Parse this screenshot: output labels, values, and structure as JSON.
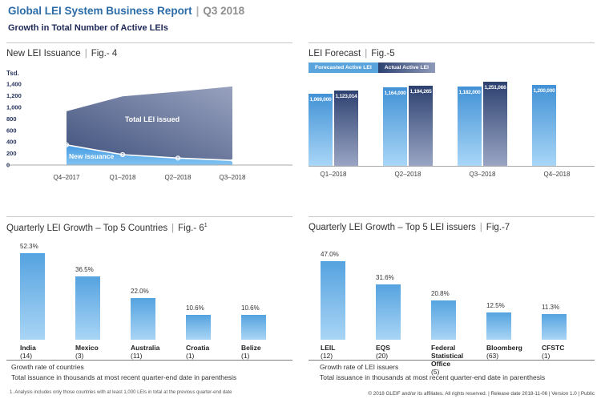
{
  "header": {
    "title": "Global LEI System Business Report",
    "pipe": "|",
    "period": "Q3 2018",
    "subtitle": "Growth in Total Number of Active LEIs"
  },
  "sections": {
    "fig4": {
      "title": "New LEI Issuance",
      "fig": "Fig.- 4"
    },
    "fig5": {
      "title": "LEI Forecast",
      "fig": "Fig.-5"
    },
    "fig6": {
      "title": "Quarterly LEI Growth – Top 5 Countries",
      "fig": "Fig.- 6",
      "sup": "1"
    },
    "fig7": {
      "title": "Quarterly LEI Growth – Top 5 LEI issuers",
      "fig": "Fig.-7"
    }
  },
  "chart_data": [
    {
      "id": "fig4",
      "type": "area",
      "title": "New LEI Issuance | Fig.- 4",
      "ylabel": "Tsd.",
      "ylim": [
        0,
        1400
      ],
      "ytick_values": [
        1400,
        1200,
        1000,
        800,
        600,
        400,
        200,
        0
      ],
      "yticks": [
        "1,400",
        "1,200",
        "1,000",
        "800",
        "600",
        "400",
        "200",
        "0"
      ],
      "categories": [
        "Q4–2017",
        "Q1–2018",
        "Q2–2018",
        "Q3–2018"
      ],
      "series": [
        {
          "name": "Total LEI issued",
          "values": [
            930,
            1190,
            1270,
            1360
          ]
        },
        {
          "name": "New issuance",
          "values": [
            350,
            180,
            120,
            80
          ]
        }
      ],
      "grid": false,
      "legend_position": "inside"
    },
    {
      "id": "fig5",
      "type": "bar",
      "title": "LEI Forecast | Fig.-5",
      "categories": [
        "Q1–2018",
        "Q2–2018",
        "Q3–2018",
        "Q4–2018"
      ],
      "series": [
        {
          "name": "Forecasted Active LEI",
          "values": [
            1069000,
            1164000,
            1182000,
            1200000
          ],
          "labels": [
            "1,069,000",
            "1,164,000",
            "1,182,000",
            "1,200,000"
          ]
        },
        {
          "name": "Actual Active LEI",
          "values": [
            1123014,
            1194265,
            1251066,
            null
          ],
          "labels": [
            "1,123,014",
            "1,194,265",
            "1,251,066",
            null
          ]
        }
      ],
      "grid": false,
      "legend_position": "top-left"
    },
    {
      "id": "fig6",
      "type": "bar",
      "title": "Quarterly LEI Growth – Top 5 Countries | Fig.-6",
      "categories": [
        "India",
        "Mexico",
        "Australia",
        "Croatia",
        "Belize"
      ],
      "counts": [
        "(14)",
        "(3)",
        "(11)",
        "(1)",
        "(1)"
      ],
      "values": [
        52.3,
        36.5,
        22.0,
        10.6,
        10.6
      ],
      "value_labels": [
        "52.3%",
        "36.5%",
        "22.0%",
        "10.6%",
        "10.6%"
      ],
      "ylabel": "",
      "notes": [
        "Growth rate of countries",
        "Total issuance in thousands at most recent quarter-end date in parenthesis"
      ]
    },
    {
      "id": "fig7",
      "type": "bar",
      "title": "Quarterly LEI Growth – Top 5 LEI issuers | Fig.-7",
      "categories": [
        "LEIL",
        "EQS",
        "Federal Statistical Office",
        "Bloomberg",
        "CFSTC"
      ],
      "counts": [
        "(12)",
        "(20)",
        "(5)",
        "(63)",
        "(1)"
      ],
      "values": [
        47.0,
        31.6,
        20.8,
        12.5,
        11.3
      ],
      "value_labels": [
        "47.0%",
        "31.6%",
        "20.8%",
        "12.5%",
        "11.3%"
      ],
      "ylabel": "",
      "notes": [
        "Growth rate of LEI issuers",
        "Total issuance in thousands at most recent quarter-end date in parenthesis"
      ]
    }
  ],
  "footer": {
    "footnote": "1. Analysis includes only those countries with at least 1,000 LEIs in total at the previous quarter-end date",
    "copyright": "© 2018 GLEIF and/or its affiliates. All rights reserved. | Release date 2018-11-06 | Version 1.0 | Public"
  },
  "colors": {
    "accent_blue": "#2b6ca8",
    "dark_navy": "#1d2857",
    "tick_navy": "#27355f",
    "bar_light_top": "#55a3e0",
    "bar_light_bottom": "#a9d5f5",
    "forecast_top": "#4292d6",
    "forecast_bottom": "#a9d6f7",
    "actual_top": "#2d4170",
    "actual_bottom": "#9aa5c4",
    "area_dark_low": "#41527d",
    "area_dark_high": "#98a2bf",
    "area_light": "#459be3",
    "area_light_low": "#82c3f1",
    "legend_forecast_bg": "#5aa4de"
  }
}
